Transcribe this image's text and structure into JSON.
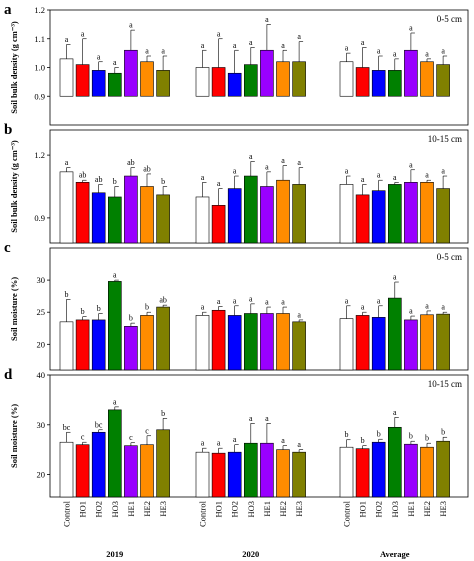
{
  "colors": [
    "#ffffff",
    "#ff0000",
    "#0000ff",
    "#008000",
    "#9900ff",
    "#ff8c00",
    "#808000"
  ],
  "chart_data": [
    {
      "type": "bar",
      "panel": "a",
      "depth_label": "0-5 cm",
      "ylabel": "Soil bulk density (g cm⁻³)",
      "ylim": [
        0.8,
        1.2
      ],
      "yaxis_start": 0.9,
      "yticks": [
        "0.9",
        "1.0",
        "1.1",
        "1.2"
      ],
      "groups": [
        "2019",
        "2020",
        "Average"
      ],
      "categories": [
        "Control",
        "HO1",
        "HO2",
        "HO3",
        "HE1",
        "HE2",
        "HE3"
      ],
      "values": [
        [
          1.03,
          1.01,
          0.99,
          0.98,
          1.06,
          1.02,
          0.99
        ],
        [
          1.0,
          1.0,
          0.98,
          1.01,
          1.06,
          1.02,
          1.02
        ],
        [
          1.02,
          1.0,
          0.99,
          0.99,
          1.06,
          1.02,
          1.01
        ]
      ],
      "errors": [
        [
          0.05,
          0.09,
          0.03,
          0.02,
          0.07,
          0.02,
          0.05
        ],
        [
          0.06,
          0.1,
          0.08,
          0.06,
          0.09,
          0.04,
          0.07
        ],
        [
          0.03,
          0.07,
          0.05,
          0.04,
          0.06,
          0.01,
          0.03
        ]
      ],
      "letters": [
        [
          "a",
          "a",
          "a",
          "a",
          "a",
          "a",
          "a"
        ],
        [
          "a",
          "a",
          "a",
          "a",
          "a",
          "a",
          "a"
        ],
        [
          "a",
          "a",
          "a",
          "a",
          "a",
          "a",
          "a"
        ]
      ]
    },
    {
      "type": "bar",
      "panel": "b",
      "depth_label": "10-15 cm",
      "ylabel": "Soil bulk density (g cm⁻³)",
      "ylim": [
        0.78,
        1.32
      ],
      "yaxis_start": 0.78,
      "yticks": [
        "0.9",
        "1.2"
      ],
      "groups": [
        "2019",
        "2020",
        "Average"
      ],
      "categories": [
        "Control",
        "HO1",
        "HO2",
        "HO3",
        "HE1",
        "HE2",
        "HE3"
      ],
      "values": [
        [
          1.12,
          1.07,
          1.02,
          1.0,
          1.1,
          1.05,
          1.01
        ],
        [
          1.0,
          0.96,
          1.04,
          1.1,
          1.05,
          1.08,
          1.06
        ],
        [
          1.06,
          1.01,
          1.03,
          1.06,
          1.07,
          1.07,
          1.04
        ]
      ],
      "errors": [
        [
          0.02,
          0.01,
          0.04,
          0.05,
          0.04,
          0.06,
          0.04
        ],
        [
          0.07,
          0.08,
          0.06,
          0.07,
          0.07,
          0.07,
          0.08
        ],
        [
          0.04,
          0.05,
          0.05,
          0.01,
          0.06,
          0.01,
          0.06
        ]
      ],
      "letters": [
        [
          "a",
          "ab",
          "ab",
          "b",
          "ab",
          "ab",
          "b"
        ],
        [
          "a",
          "a",
          "a",
          "a",
          "a",
          "a",
          "a"
        ],
        [
          "a",
          "a",
          "a",
          "a",
          "a",
          "a",
          "a"
        ]
      ]
    },
    {
      "type": "bar",
      "panel": "c",
      "depth_label": "0-5 cm",
      "ylabel": "Soil moisture (%)",
      "ylim": [
        16,
        35
      ],
      "yaxis_start": 16,
      "yticks": [
        "20",
        "25",
        "30"
      ],
      "groups": [
        "2019",
        "2020",
        "Average"
      ],
      "categories": [
        "Control",
        "HO1",
        "HO2",
        "HO3",
        "HE1",
        "HE2",
        "HE3"
      ],
      "values": [
        [
          23.5,
          23.8,
          23.8,
          29.8,
          22.8,
          24.5,
          25.8
        ],
        [
          24.5,
          25.3,
          24.5,
          24.8,
          24.8,
          24.8,
          23.5
        ],
        [
          24.0,
          24.5,
          24.2,
          27.2,
          23.8,
          24.6,
          24.7
        ]
      ],
      "errors": [
        [
          3.5,
          0.5,
          1.0,
          0.2,
          0.5,
          0.5,
          0.3
        ],
        [
          0.5,
          0.6,
          1.5,
          1.5,
          1.0,
          1.0,
          0.3
        ],
        [
          2.0,
          0.5,
          1.8,
          2.5,
          0.6,
          0.6,
          0.3
        ]
      ],
      "letters": [
        [
          "b",
          "b",
          "b",
          "a",
          "b",
          "b",
          "ab"
        ],
        [
          "a",
          "a",
          "a",
          "a",
          "a",
          "a",
          "a"
        ],
        [
          "a",
          "a",
          "a",
          "a",
          "a",
          "a",
          "a"
        ]
      ]
    },
    {
      "type": "bar",
      "panel": "d",
      "depth_label": "10-15 cm",
      "ylabel": "Soil moisture (%)",
      "ylim": [
        15.5,
        40
      ],
      "yaxis_start": 15.5,
      "yticks": [
        "20",
        "30",
        "40"
      ],
      "groups": [
        "2019",
        "2020",
        "Average"
      ],
      "categories": [
        "Control",
        "HO1",
        "HO2",
        "HO3",
        "HE1",
        "HE2",
        "HE3"
      ],
      "values": [
        [
          26.5,
          26.0,
          28.5,
          33.0,
          25.8,
          26.0,
          29.0
        ],
        [
          24.5,
          24.3,
          24.5,
          26.3,
          26.3,
          25.0,
          24.5
        ],
        [
          25.5,
          25.2,
          26.5,
          29.5,
          26.1,
          25.5,
          26.7
        ]
      ],
      "errors": [
        [
          2.0,
          0.5,
          0.5,
          0.6,
          0.6,
          1.8,
          2.3
        ],
        [
          0.8,
          1.0,
          1.5,
          4.0,
          4.0,
          0.8,
          0.5
        ],
        [
          1.5,
          0.6,
          0.6,
          2.0,
          0.6,
          0.8,
          0.8
        ]
      ],
      "letters": [
        [
          "bc",
          "c",
          "bc",
          "a",
          "c",
          "c",
          "b"
        ],
        [
          "a",
          "a",
          "a",
          "a",
          "a",
          "a",
          "a"
        ],
        [
          "b",
          "b",
          "b",
          "a",
          "b",
          "b",
          "b"
        ]
      ]
    }
  ]
}
